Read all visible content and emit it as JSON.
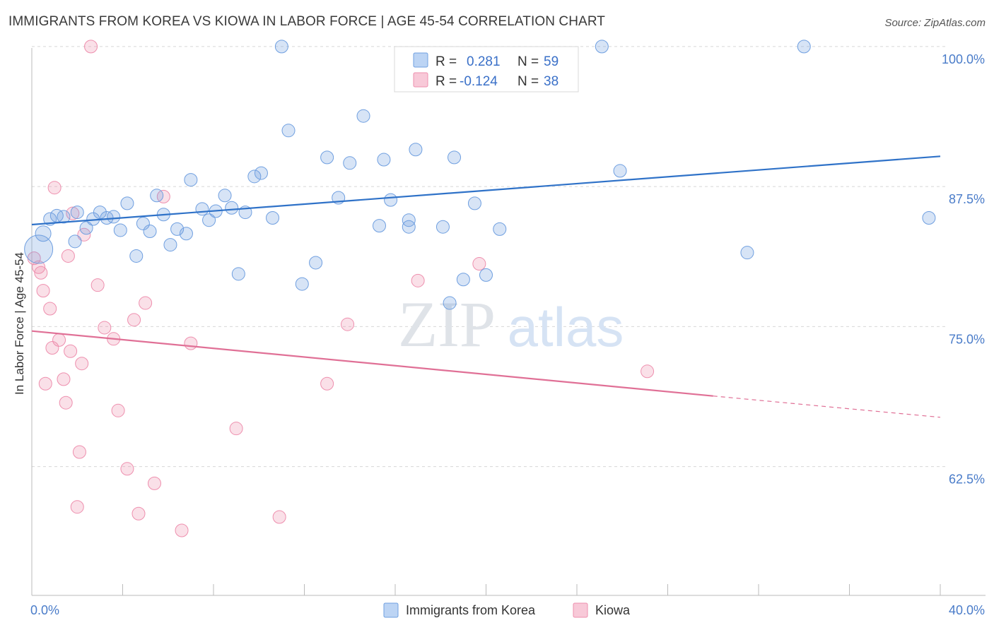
{
  "header": {
    "title": "IMMIGRANTS FROM KOREA VS KIOWA IN LABOR FORCE | AGE 45-54 CORRELATION CHART",
    "source": "Source: ZipAtlas.com"
  },
  "watermark": {
    "part1": "ZIP",
    "part2": "atlas"
  },
  "legend": {
    "rows": [
      {
        "r_label": "R =",
        "r_value": "0.281",
        "n_label": "N =",
        "n_value": "59"
      },
      {
        "r_label": "R =",
        "r_value": "-0.124",
        "n_label": "N =",
        "n_value": "38"
      }
    ]
  },
  "chart_data": {
    "type": "scatter",
    "ylabel": "In Labor Force | Age 45-54",
    "xlim": [
      0,
      40
    ],
    "ylim": [
      51,
      101
    ],
    "x_tick_labels": [
      {
        "value": 0,
        "label": "0.0%"
      },
      {
        "value": 40,
        "label": "40.0%"
      }
    ],
    "y_tick_labels": [
      {
        "value": 100,
        "label": "100.0%"
      },
      {
        "value": 87.5,
        "label": "87.5%"
      },
      {
        "value": 75,
        "label": "75.0%"
      },
      {
        "value": 62.5,
        "label": "62.5%"
      }
    ],
    "grid_y": [
      100,
      87.5,
      75,
      62.5
    ],
    "colors": {
      "korea": "#6f9fe0",
      "kiowa": "#ee8fae",
      "korea_line": "#2f72c8",
      "kiowa_line": "#e07096"
    },
    "series": [
      {
        "name": "Immigrants from Korea",
        "key": "korea",
        "trend": {
          "x": [
            0,
            40
          ],
          "y": [
            84.1,
            90.2
          ]
        },
        "points": [
          [
            0.3,
            81.9
          ],
          [
            0.5,
            83.3
          ],
          [
            0.8,
            84.6
          ],
          [
            1.1,
            84.9
          ],
          [
            1.4,
            84.8
          ],
          [
            1.9,
            82.6
          ],
          [
            2.0,
            85.2
          ],
          [
            2.4,
            83.8
          ],
          [
            2.7,
            84.6
          ],
          [
            3.0,
            85.2
          ],
          [
            3.3,
            84.7
          ],
          [
            3.6,
            84.8
          ],
          [
            3.9,
            83.6
          ],
          [
            4.2,
            86.0
          ],
          [
            4.6,
            81.3
          ],
          [
            4.9,
            84.2
          ],
          [
            5.2,
            83.5
          ],
          [
            5.5,
            86.7
          ],
          [
            5.8,
            85.0
          ],
          [
            6.1,
            82.3
          ],
          [
            6.4,
            83.7
          ],
          [
            6.8,
            83.3
          ],
          [
            7.0,
            88.1
          ],
          [
            7.5,
            85.5
          ],
          [
            7.8,
            84.5
          ],
          [
            8.1,
            85.3
          ],
          [
            8.5,
            86.7
          ],
          [
            8.8,
            85.6
          ],
          [
            9.1,
            79.7
          ],
          [
            9.4,
            85.2
          ],
          [
            9.8,
            88.4
          ],
          [
            10.1,
            88.7
          ],
          [
            10.6,
            84.7
          ],
          [
            11.0,
            100.0
          ],
          [
            11.3,
            92.5
          ],
          [
            11.9,
            78.8
          ],
          [
            12.5,
            80.7
          ],
          [
            13.0,
            90.1
          ],
          [
            13.5,
            86.5
          ],
          [
            14.0,
            89.6
          ],
          [
            14.6,
            93.8
          ],
          [
            15.3,
            84.0
          ],
          [
            15.5,
            89.9
          ],
          [
            15.8,
            86.3
          ],
          [
            16.6,
            84.5
          ],
          [
            16.6,
            83.9
          ],
          [
            16.9,
            90.8
          ],
          [
            18.1,
            83.9
          ],
          [
            18.4,
            77.1
          ],
          [
            18.6,
            90.1
          ],
          [
            19.0,
            79.2
          ],
          [
            19.5,
            86.0
          ],
          [
            20.0,
            79.6
          ],
          [
            20.6,
            83.7
          ],
          [
            25.1,
            100.0
          ],
          [
            25.9,
            88.9
          ],
          [
            31.5,
            81.6
          ],
          [
            34.0,
            100.0
          ],
          [
            39.5,
            84.7
          ]
        ]
      },
      {
        "name": "Kiowa",
        "key": "kiowa",
        "trend": {
          "x": [
            0,
            30
          ],
          "y": [
            74.6,
            68.8
          ]
        },
        "trend_dashed": {
          "x": [
            30,
            40
          ],
          "y": [
            68.8,
            66.9
          ]
        },
        "points": [
          [
            0.1,
            81.1
          ],
          [
            0.3,
            80.3
          ],
          [
            0.4,
            79.8
          ],
          [
            0.5,
            78.2
          ],
          [
            0.6,
            69.9
          ],
          [
            0.8,
            76.6
          ],
          [
            0.9,
            73.1
          ],
          [
            1.0,
            87.4
          ],
          [
            1.2,
            73.8
          ],
          [
            1.4,
            70.3
          ],
          [
            1.5,
            68.2
          ],
          [
            1.6,
            81.3
          ],
          [
            1.7,
            72.8
          ],
          [
            1.8,
            85.1
          ],
          [
            2.0,
            58.9
          ],
          [
            2.1,
            63.8
          ],
          [
            2.2,
            71.7
          ],
          [
            2.3,
            83.2
          ],
          [
            2.6,
            100.0
          ],
          [
            2.9,
            78.7
          ],
          [
            3.2,
            74.9
          ],
          [
            3.6,
            73.9
          ],
          [
            3.8,
            67.5
          ],
          [
            4.2,
            62.3
          ],
          [
            4.5,
            75.6
          ],
          [
            4.7,
            58.3
          ],
          [
            5.0,
            77.1
          ],
          [
            5.4,
            61.0
          ],
          [
            5.8,
            86.6
          ],
          [
            6.6,
            56.8
          ],
          [
            7.0,
            73.5
          ],
          [
            9.0,
            65.9
          ],
          [
            10.9,
            58.0
          ],
          [
            13.0,
            69.9
          ],
          [
            13.9,
            75.2
          ],
          [
            17.0,
            79.1
          ],
          [
            19.7,
            80.6
          ],
          [
            27.1,
            71.0
          ]
        ]
      }
    ]
  },
  "bottom_legend": {
    "items": [
      {
        "label": "Immigrants from Korea"
      },
      {
        "label": "Kiowa"
      }
    ]
  }
}
